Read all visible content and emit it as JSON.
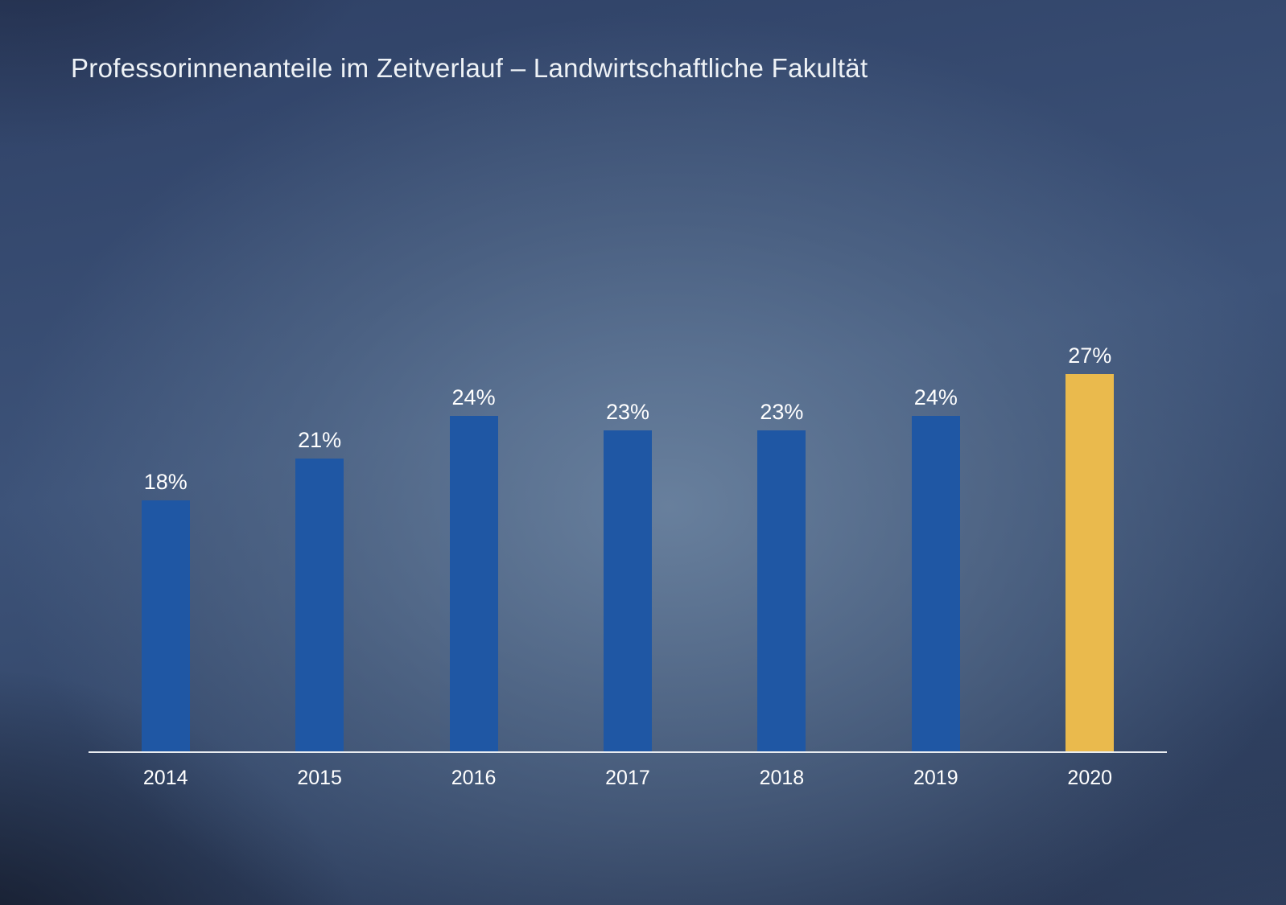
{
  "title": "Professorinnenanteile im Zeitverlauf – Landwirtschaftliche Fakultät",
  "colors": {
    "bar": "#1f57a4",
    "bar_highlight": "#eaba4d",
    "axis": "#e9ecf0",
    "title_text": "#eef2f6",
    "label_text": "#ffffff",
    "background_center": "#64809f",
    "background_edge": "#273450"
  },
  "chart_data": {
    "type": "bar",
    "title": "Professorinnenanteile im Zeitverlauf – Landwirtschaftliche Fakultät",
    "categories": [
      "2014",
      "2015",
      "2016",
      "2017",
      "2018",
      "2019",
      "2020"
    ],
    "values": [
      18,
      21,
      24,
      23,
      23,
      24,
      27
    ],
    "value_labels": [
      "18%",
      "21%",
      "24%",
      "23%",
      "23%",
      "24%",
      "27%"
    ],
    "unit": "%",
    "highlight_index": 6,
    "xlabel": "",
    "ylabel": "",
    "ylim": [
      0,
      30
    ],
    "grid": false,
    "legend": false,
    "y_axis_visible": false,
    "x_axis_line": true
  }
}
